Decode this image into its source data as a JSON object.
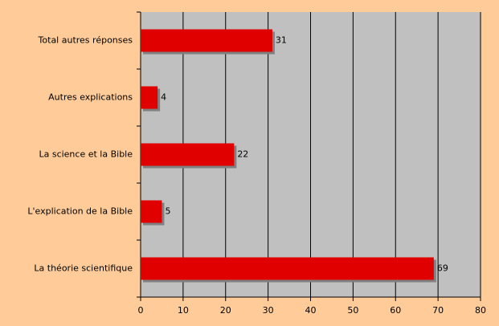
{
  "chart_data": {
    "type": "hbar",
    "categories": [
      "Total autres réponses",
      "Autres explications",
      "La science et la Bible",
      "L'explication de la Bible",
      "La théorie scientifique"
    ],
    "values": [
      31,
      4,
      22,
      5,
      69
    ],
    "color": "#e00000",
    "xlim": [
      0,
      80
    ],
    "xticks": [
      0,
      10,
      20,
      30,
      40,
      50,
      60,
      70,
      80
    ],
    "grid": true
  }
}
